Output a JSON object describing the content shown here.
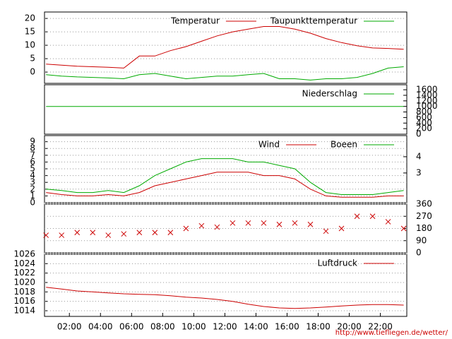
{
  "chart_data": [
    {
      "type": "line",
      "xlim": [
        0.4,
        23.7
      ],
      "ylim": [
        -4.2,
        22.4
      ],
      "yticks": [
        0,
        5,
        10,
        15,
        20
      ],
      "grid": true,
      "x": [
        0.5,
        1.5,
        2.5,
        3.5,
        4.5,
        5.5,
        6.5,
        7.5,
        8.5,
        9.5,
        10.5,
        11.5,
        12.5,
        13.5,
        14.5,
        15.5,
        16.5,
        17.5,
        18.5,
        19.5,
        20.5,
        21.5,
        22.5,
        23.5
      ],
      "series": [
        {
          "name": "Temperatur",
          "color": "#cc0000",
          "values": [
            3,
            2.6,
            2.2,
            2.0,
            1.8,
            1.5,
            6.0,
            6.0,
            8.0,
            9.5,
            11.5,
            13.5,
            15,
            16,
            17,
            17,
            16,
            14.5,
            12.5,
            11,
            9.8,
            9,
            8.8,
            8.5
          ]
        },
        {
          "name": "Taupunkttemperatur",
          "color": "#00aa00",
          "values": [
            -1,
            -1.5,
            -1.8,
            -2,
            -2.2,
            -2.5,
            -1,
            -0.5,
            -1.5,
            -2.5,
            -2,
            -1.5,
            -1.5,
            -1,
            -0.5,
            -2.5,
            -2.5,
            -3,
            -2.5,
            -2.5,
            -2,
            -0.5,
            1.5,
            2
          ]
        }
      ]
    },
    {
      "type": "line",
      "xlim": [
        0.4,
        23.7
      ],
      "y2lim": [
        0,
        1780
      ],
      "y2ticks": [
        0,
        200,
        400,
        600,
        800,
        1000,
        1200,
        1400,
        1600
      ],
      "grid": false,
      "x": [
        0.5,
        23.5
      ],
      "series": [
        {
          "name": "Niederschlag",
          "color": "#00aa00",
          "axis": "y2",
          "values": [
            1000,
            1000
          ]
        }
      ]
    },
    {
      "type": "line",
      "xlim": [
        0.4,
        23.7
      ],
      "ylim": [
        0,
        9.9
      ],
      "yticks": [
        0,
        1,
        2,
        3,
        4,
        5,
        6,
        7,
        8,
        9
      ],
      "y2lim": [
        1.17,
        5.3
      ],
      "y2ticks": [
        3,
        4
      ],
      "grid": true,
      "x": [
        0.5,
        1.5,
        2.5,
        3.5,
        4.5,
        5.5,
        6.5,
        7.5,
        8.5,
        9.5,
        10.5,
        11.5,
        12.5,
        13.5,
        14.5,
        15.5,
        16.5,
        17.5,
        18.5,
        19.5,
        20.5,
        21.5,
        22.5,
        23.5
      ],
      "series": [
        {
          "name": "Wind",
          "color": "#cc0000",
          "values": [
            1.5,
            1.2,
            1,
            1,
            1.2,
            1,
            1.5,
            2.5,
            3,
            3.5,
            4,
            4.5,
            4.5,
            4.5,
            4,
            4,
            3.5,
            2,
            1,
            0.8,
            0.8,
            0.8,
            1,
            1
          ]
        },
        {
          "name": "Boeen",
          "color": "#00aa00",
          "values": [
            2,
            1.8,
            1.5,
            1.5,
            1.8,
            1.5,
            2.5,
            4,
            5,
            6,
            6.5,
            6.5,
            6.5,
            6,
            6,
            5.5,
            5,
            3,
            1.5,
            1.2,
            1.2,
            1.2,
            1.5,
            1.8
          ]
        }
      ]
    },
    {
      "type": "scatter",
      "xlim": [
        0.4,
        23.7
      ],
      "y2lim": [
        0,
        360
      ],
      "y2ticks": [
        0,
        90,
        180,
        270,
        360
      ],
      "grid": true,
      "x": [
        0.5,
        1.5,
        2.5,
        3.5,
        4.5,
        5.5,
        6.5,
        7.5,
        8.5,
        9.5,
        10.5,
        11.5,
        12.5,
        13.5,
        14.5,
        15.5,
        16.5,
        17.5,
        18.5,
        19.5,
        20.5,
        21.5,
        22.5,
        23.5
      ],
      "series": [
        {
          "color": "#cc0000",
          "axis": "y2",
          "values": [
            130,
            130,
            150,
            150,
            130,
            140,
            150,
            150,
            150,
            180,
            200,
            190,
            220,
            220,
            220,
            210,
            220,
            210,
            160,
            180,
            270,
            270,
            230,
            180
          ]
        }
      ]
    },
    {
      "type": "line",
      "xlim": [
        0.4,
        23.7
      ],
      "ylim": [
        1012.8,
        1026
      ],
      "yticks": [
        1014,
        1016,
        1018,
        1020,
        1022,
        1024,
        1026
      ],
      "grid": true,
      "x": [
        0.5,
        1.5,
        2.5,
        3.5,
        4.5,
        5.5,
        6.5,
        7.5,
        8.5,
        9.5,
        10.5,
        11.5,
        12.5,
        13.5,
        14.5,
        15.5,
        16.5,
        17.5,
        18.5,
        19.5,
        20.5,
        21.5,
        22.5,
        23.5
      ],
      "xticks": [
        {
          "value": 2,
          "label": "02:00"
        },
        {
          "value": 4,
          "label": "04:00"
        },
        {
          "value": 6,
          "label": "06:00"
        },
        {
          "value": 8,
          "label": "08:00"
        },
        {
          "value": 10,
          "label": "10:00"
        },
        {
          "value": 12,
          "label": "12:00"
        },
        {
          "value": 14,
          "label": "14:00"
        },
        {
          "value": 16,
          "label": "16:00"
        },
        {
          "value": 18,
          "label": "18:00"
        },
        {
          "value": 20,
          "label": "20:00"
        },
        {
          "value": 22,
          "label": "22:00"
        }
      ],
      "series": [
        {
          "name": "Luftdruck",
          "color": "#cc0000",
          "values": [
            1019,
            1018.6,
            1018.2,
            1018,
            1017.8,
            1017.6,
            1017.5,
            1017.4,
            1017.2,
            1016.9,
            1016.7,
            1016.4,
            1016,
            1015.4,
            1014.9,
            1014.6,
            1014.5,
            1014.6,
            1014.8,
            1015,
            1015.2,
            1015.3,
            1015.3,
            1015.2
          ]
        }
      ]
    }
  ],
  "footer": "http://www.tiefliegen.de/wetter/"
}
